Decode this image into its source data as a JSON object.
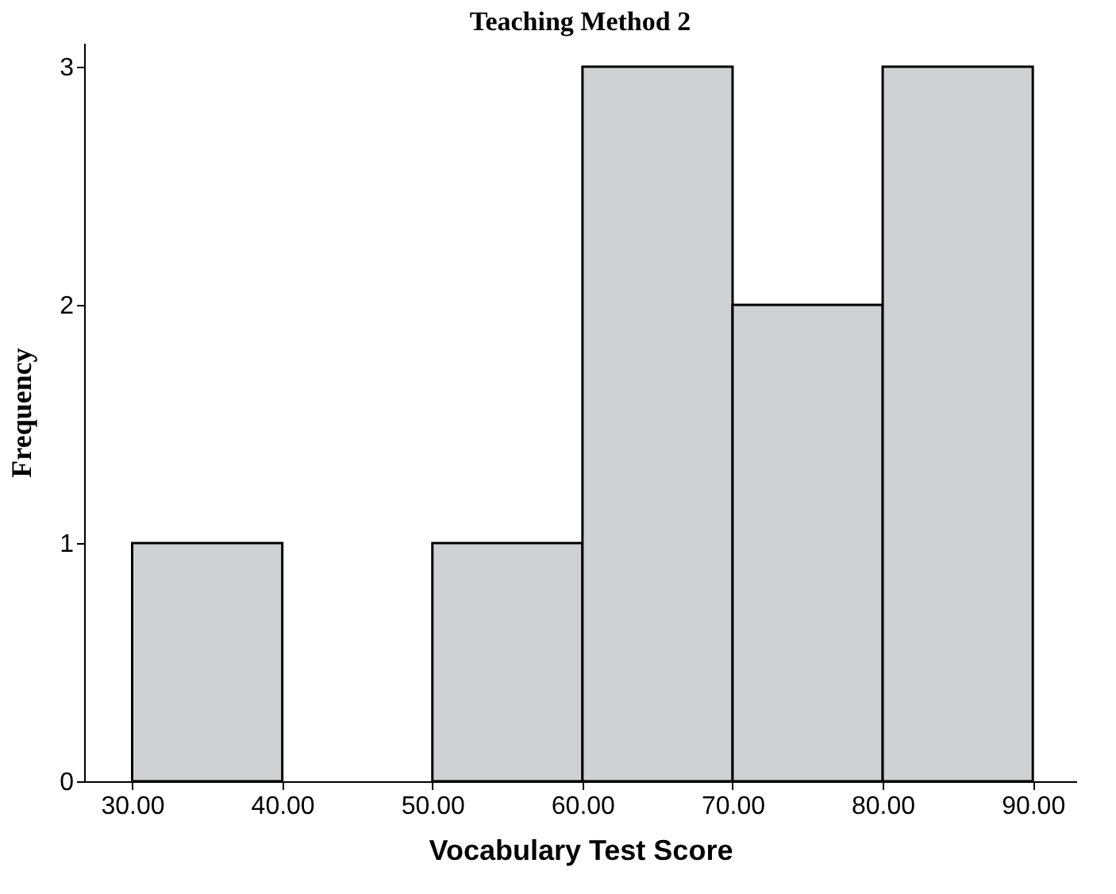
{
  "chart_data": {
    "type": "histogram",
    "title": "Teaching Method 2",
    "xlabel": "Vocabulary Test Score",
    "ylabel": "Frequency",
    "bins": [
      30,
      40,
      50,
      60,
      70,
      80,
      90
    ],
    "values": [
      1,
      0,
      1,
      3,
      2,
      3
    ],
    "color": "#d0d1d3",
    "xlim": [
      26.8,
      92.9
    ],
    "xticks": [
      {
        "value": 30,
        "label": "30.00"
      },
      {
        "value": 40,
        "label": "40.00"
      },
      {
        "value": 50,
        "label": "50.00"
      },
      {
        "value": 60,
        "label": "60.00"
      },
      {
        "value": 70,
        "label": "70.00"
      },
      {
        "value": 80,
        "label": "80.00"
      },
      {
        "value": 90,
        "label": "90.00"
      }
    ],
    "ylim": [
      0,
      3.1
    ],
    "yticks": [
      0,
      1,
      2,
      3
    ],
    "grid": false
  }
}
